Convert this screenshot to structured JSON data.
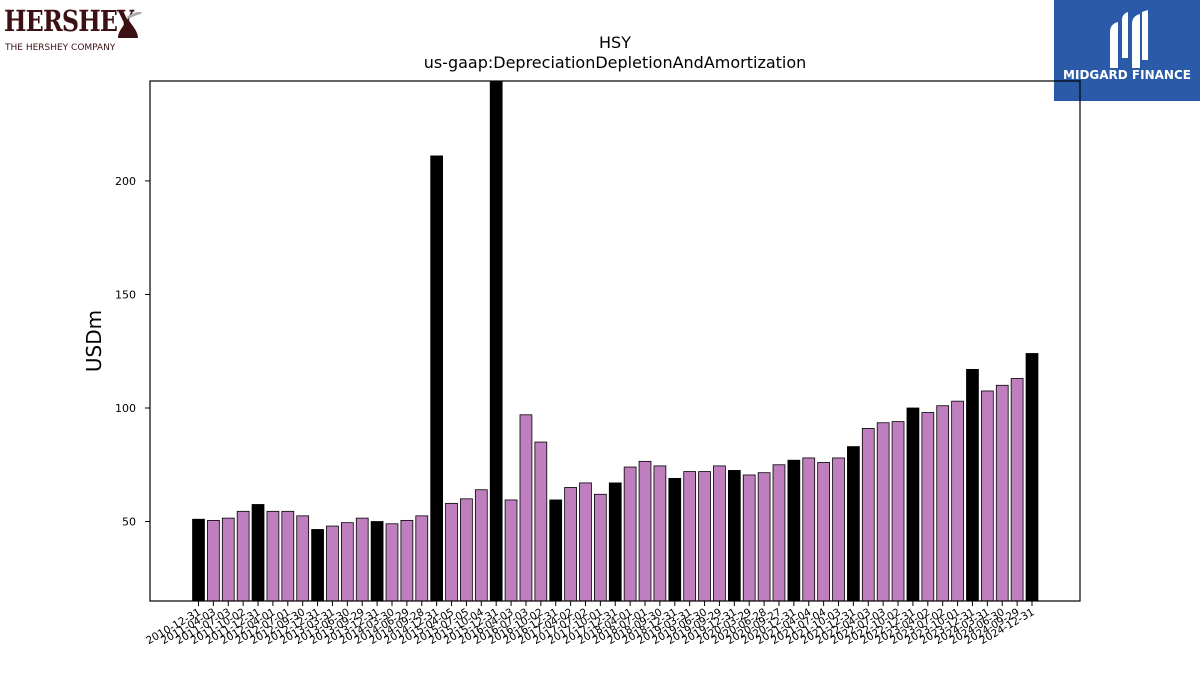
{
  "logos": {
    "hershey_wordmark": "HERSHEY",
    "hershey_subtitle": "THE HERSHEY COMPANY",
    "midgard_name": "MIDGARD FINANCE"
  },
  "colors": {
    "bar_purple": "#bf7fbf",
    "bar_black": "#000000",
    "hershey_brown": "#3d1114",
    "midgard_blue": "#2b5aa9"
  },
  "chart_data": {
    "type": "bar",
    "title": "HSY",
    "subtitle": "us-gaap:DepreciationDepletionAndAmortization",
    "xlabel": "",
    "ylabel": "USDm",
    "ylim": [
      15,
      244
    ],
    "yticks": [
      50,
      100,
      150,
      200
    ],
    "grid": false,
    "legend": "none",
    "bars": [
      {
        "date": "2010-12-31",
        "value": 51,
        "color": "black"
      },
      {
        "date": "2011-04-03",
        "value": 50.5,
        "color": "purple"
      },
      {
        "date": "2011-07-03",
        "value": 51.5,
        "color": "purple"
      },
      {
        "date": "2011-10-02",
        "value": 54.5,
        "color": "purple"
      },
      {
        "date": "2011-12-31",
        "value": 57.5,
        "color": "black"
      },
      {
        "date": "2012-04-01",
        "value": 54.5,
        "color": "purple"
      },
      {
        "date": "2012-07-01",
        "value": 54.5,
        "color": "purple"
      },
      {
        "date": "2012-09-30",
        "value": 52.5,
        "color": "purple"
      },
      {
        "date": "2012-12-31",
        "value": 46.5,
        "color": "black"
      },
      {
        "date": "2013-03-31",
        "value": 48,
        "color": "purple"
      },
      {
        "date": "2013-06-30",
        "value": 49.5,
        "color": "purple"
      },
      {
        "date": "2013-09-29",
        "value": 51.5,
        "color": "purple"
      },
      {
        "date": "2013-12-31",
        "value": 50,
        "color": "black"
      },
      {
        "date": "2014-03-30",
        "value": 49,
        "color": "purple"
      },
      {
        "date": "2014-06-29",
        "value": 50.5,
        "color": "purple"
      },
      {
        "date": "2014-09-28",
        "value": 52.5,
        "color": "purple"
      },
      {
        "date": "2014-12-31",
        "value": 211,
        "color": "black"
      },
      {
        "date": "2015-04-05",
        "value": 58,
        "color": "purple"
      },
      {
        "date": "2015-07-05",
        "value": 60,
        "color": "purple"
      },
      {
        "date": "2015-10-04",
        "value": 64,
        "color": "purple"
      },
      {
        "date": "2015-12-31",
        "value": 244,
        "color": "black"
      },
      {
        "date": "2016-04-03",
        "value": 59.5,
        "color": "purple"
      },
      {
        "date": "2016-07-03",
        "value": 97,
        "color": "purple"
      },
      {
        "date": "2016-10-02",
        "value": 85,
        "color": "purple"
      },
      {
        "date": "2016-12-31",
        "value": 59.5,
        "color": "black"
      },
      {
        "date": "2017-04-02",
        "value": 65,
        "color": "purple"
      },
      {
        "date": "2017-07-02",
        "value": 67,
        "color": "purple"
      },
      {
        "date": "2017-10-01",
        "value": 62,
        "color": "purple"
      },
      {
        "date": "2017-12-31",
        "value": 67,
        "color": "black"
      },
      {
        "date": "2018-04-01",
        "value": 74,
        "color": "purple"
      },
      {
        "date": "2018-07-01",
        "value": 76.5,
        "color": "purple"
      },
      {
        "date": "2018-09-30",
        "value": 74.5,
        "color": "purple"
      },
      {
        "date": "2018-12-31",
        "value": 69,
        "color": "black"
      },
      {
        "date": "2019-03-31",
        "value": 72,
        "color": "purple"
      },
      {
        "date": "2019-06-30",
        "value": 72,
        "color": "purple"
      },
      {
        "date": "2019-09-29",
        "value": 74.5,
        "color": "purple"
      },
      {
        "date": "2019-12-31",
        "value": 72.5,
        "color": "black"
      },
      {
        "date": "2020-03-29",
        "value": 70.5,
        "color": "purple"
      },
      {
        "date": "2020-06-28",
        "value": 71.5,
        "color": "purple"
      },
      {
        "date": "2020-09-27",
        "value": 75,
        "color": "purple"
      },
      {
        "date": "2020-12-31",
        "value": 77,
        "color": "black"
      },
      {
        "date": "2021-04-04",
        "value": 78,
        "color": "purple"
      },
      {
        "date": "2021-07-04",
        "value": 76,
        "color": "purple"
      },
      {
        "date": "2021-10-03",
        "value": 78,
        "color": "purple"
      },
      {
        "date": "2021-12-31",
        "value": 83,
        "color": "black"
      },
      {
        "date": "2022-04-03",
        "value": 91,
        "color": "purple"
      },
      {
        "date": "2022-07-03",
        "value": 93.5,
        "color": "purple"
      },
      {
        "date": "2022-10-02",
        "value": 94,
        "color": "purple"
      },
      {
        "date": "2022-12-31",
        "value": 100,
        "color": "black"
      },
      {
        "date": "2023-04-02",
        "value": 98,
        "color": "purple"
      },
      {
        "date": "2023-07-02",
        "value": 101,
        "color": "purple"
      },
      {
        "date": "2023-10-01",
        "value": 103,
        "color": "purple"
      },
      {
        "date": "2023-12-31",
        "value": 117,
        "color": "black"
      },
      {
        "date": "2024-03-31",
        "value": 107.5,
        "color": "purple"
      },
      {
        "date": "2024-06-30",
        "value": 110,
        "color": "purple"
      },
      {
        "date": "2024-09-29",
        "value": 113,
        "color": "purple"
      },
      {
        "date": "2024-12-31",
        "value": 124,
        "color": "black"
      }
    ]
  }
}
